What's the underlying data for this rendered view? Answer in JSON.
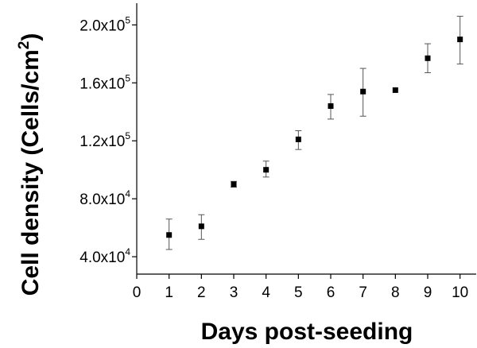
{
  "chart_data": {
    "type": "scatter",
    "xlabel": "Days post-seeding",
    "ylabel_text": "Cell density (Cells/cm",
    "ylabel_sup": "2",
    "ylabel_close": ")",
    "xlim": [
      0,
      10.5
    ],
    "ylim": [
      28000,
      215000
    ],
    "x_ticks": [
      0,
      1,
      2,
      3,
      4,
      5,
      6,
      7,
      8,
      9,
      10
    ],
    "x_tick_labels": [
      "0",
      "1",
      "2",
      "3",
      "4",
      "5",
      "6",
      "7",
      "8",
      "9",
      "10"
    ],
    "y_ticks": [
      40000,
      80000,
      120000,
      160000,
      200000
    ],
    "y_tick_labels": [
      {
        "base": "4.0x10",
        "exp": "4"
      },
      {
        "base": "8.0x10",
        "exp": "4"
      },
      {
        "base": "1.2x10",
        "exp": "5"
      },
      {
        "base": "1.6x10",
        "exp": "5"
      },
      {
        "base": "2.0x10",
        "exp": "5"
      }
    ],
    "grid": false,
    "legend": "none",
    "marker_color": "#000000",
    "errorbar_color": "#555555",
    "points": [
      {
        "x": 1,
        "y": 55000,
        "err_low": 45000,
        "err_high": 66000
      },
      {
        "x": 2,
        "y": 61000,
        "err_low": 52000,
        "err_high": 69000
      },
      {
        "x": 3,
        "y": 90000,
        "err_low": 88000,
        "err_high": 92000
      },
      {
        "x": 4,
        "y": 100000,
        "err_low": 95000,
        "err_high": 106000
      },
      {
        "x": 5,
        "y": 121000,
        "err_low": 114000,
        "err_high": 127000
      },
      {
        "x": 6,
        "y": 144000,
        "err_low": 135000,
        "err_high": 152000
      },
      {
        "x": 7,
        "y": 154000,
        "err_low": 137000,
        "err_high": 170000
      },
      {
        "x": 8,
        "y": 155000,
        "err_low": 155000,
        "err_high": 155000
      },
      {
        "x": 9,
        "y": 177000,
        "err_low": 167000,
        "err_high": 187000
      },
      {
        "x": 10,
        "y": 190000,
        "err_low": 173000,
        "err_high": 206000
      }
    ]
  }
}
